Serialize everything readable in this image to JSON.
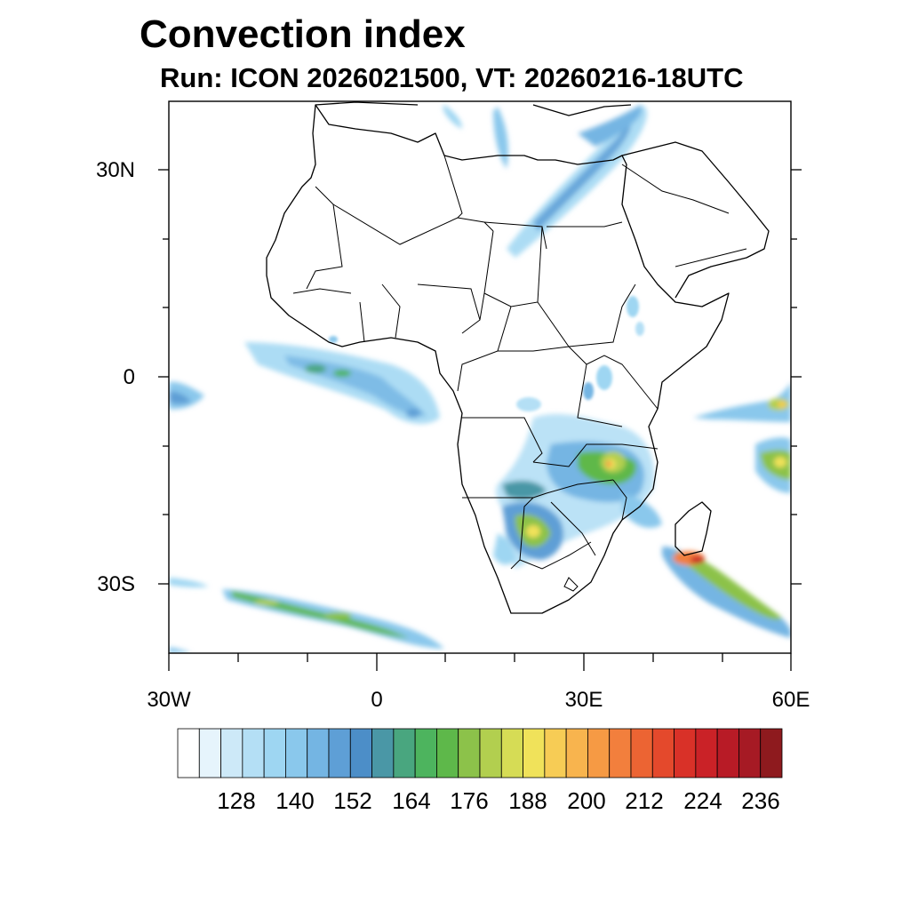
{
  "title": "Convection index",
  "subtitle": "Run: ICON 2026021500,  VT: 20260216-18UTC",
  "axes": {
    "lat_labels": [
      "30N",
      "0",
      "30S"
    ],
    "lon_labels": [
      "30W",
      "0",
      "30E",
      "60E"
    ]
  },
  "colorbar": {
    "tick_labels": [
      "128",
      "140",
      "152",
      "164",
      "176",
      "188",
      "200",
      "212",
      "224",
      "236"
    ],
    "colors": [
      "#ffffff",
      "#e6f4fc",
      "#cde9f8",
      "#b4dff5",
      "#9ed6f2",
      "#8ac8ec",
      "#74b5e3",
      "#5e9fd6",
      "#4c8ec8",
      "#4a97a6",
      "#49a67f",
      "#4db45e",
      "#5eb84a",
      "#8cc24a",
      "#b2cf4f",
      "#d6dc55",
      "#f0e25a",
      "#f7cc55",
      "#f8b44e",
      "#f69a44",
      "#f27f3d",
      "#ec6433",
      "#e4492c",
      "#d93128",
      "#ca2227",
      "#b81b26",
      "#a61a24",
      "#8e1a1e"
    ]
  }
}
